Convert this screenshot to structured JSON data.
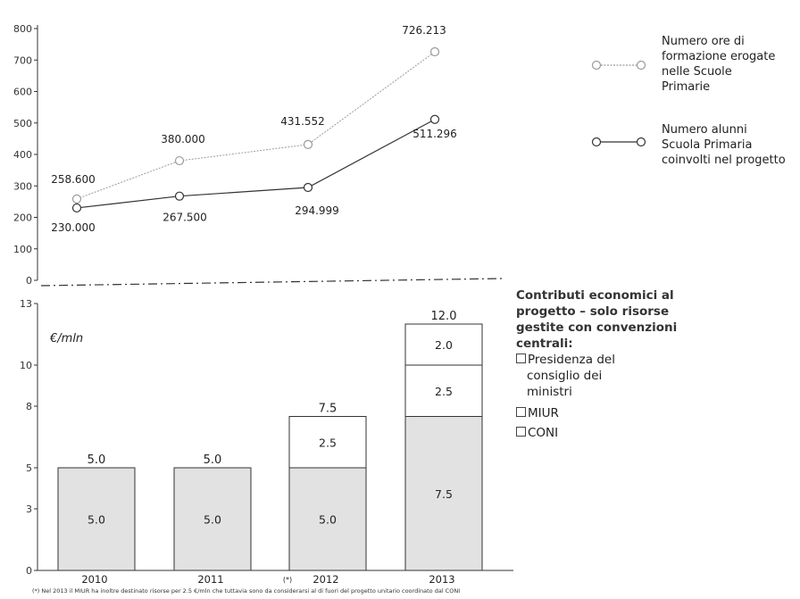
{
  "chart_data": [
    {
      "type": "line",
      "x": [
        "2010",
        "2011",
        "2012",
        "2013"
      ],
      "ylim": [
        0,
        800
      ],
      "yticks": [
        "0",
        "100",
        "200",
        "300",
        "400",
        "500",
        "600",
        "700",
        "800"
      ],
      "grid": false,
      "legend_position": "right",
      "series": [
        {
          "name": "Numero ore di formazione erogate nelle Scuole Primarie",
          "values": [
            258.6,
            380.0,
            431.552,
            726.213
          ],
          "labels": [
            "258.600",
            "380.000",
            "431.552",
            "726.213"
          ],
          "color": "#9a9a9a"
        },
        {
          "name": "Numero alunni Scuola Primaria coinvolti nel progetto",
          "values": [
            230.0,
            267.5,
            294.999,
            511.296
          ],
          "labels": [
            "230.000",
            "267.500",
            "294.999",
            "511.296"
          ],
          "color": "#333333"
        }
      ]
    },
    {
      "type": "bar",
      "stacked": true,
      "categories": [
        "2010",
        "2011",
        "2012",
        "2013"
      ],
      "category_note": [
        "",
        "",
        "(*)",
        ""
      ],
      "unit_label": "€/mln",
      "ylim": [
        0,
        13
      ],
      "yticks": [
        "0",
        "3",
        "5",
        "8",
        "10",
        "13"
      ],
      "grid": false,
      "legend_position": "right",
      "legend_title": "Contributi economici al progetto – solo risorse gestite con convenzioni centrali:",
      "series": [
        {
          "name": "CONI",
          "values": [
            5.0,
            5.0,
            5.0,
            7.5
          ],
          "labels": [
            "5.0",
            "5.0",
            "5.0",
            "7.5"
          ],
          "color": "#e2e2e2"
        },
        {
          "name": "MIUR",
          "values": [
            0,
            0,
            2.5,
            2.5
          ],
          "labels": [
            "",
            "",
            "2.5",
            "2.5"
          ],
          "color": "#ffffff"
        },
        {
          "name": "Presidenza del consiglio dei ministri",
          "values": [
            0,
            0,
            0,
            2.0
          ],
          "labels": [
            "",
            "",
            "",
            "2.0"
          ],
          "color": "#ffffff"
        }
      ],
      "totals": [
        5.0,
        5.0,
        7.5,
        12.0
      ],
      "total_labels": [
        "5.0",
        "5.0",
        "7.5",
        "12.0"
      ]
    }
  ],
  "legend": {
    "line1_lines": [
      "Numero ore di",
      "formazione erogate",
      "nelle Scuole",
      "Primarie"
    ],
    "line2_lines": [
      "Numero alunni",
      "Scuola Primaria",
      "coinvolti nel progetto"
    ],
    "bar_title_lines": [
      "Contributi economici al",
      "progetto – solo risorse",
      "gestite con convenzioni",
      "centrali:"
    ],
    "bar_item_presidenza_lines": [
      "Presidenza del",
      "consiglio dei",
      "ministri"
    ],
    "bar_item_miur": "MIUR",
    "bar_item_coni": "CONI"
  },
  "footnote": "(*) Nel 2013 il MIUR ha inoltre destinato risorse per 2.5 €/mln che tuttavia sono da considerarsi al di fuori del progetto unitario coordinato dal CONI"
}
